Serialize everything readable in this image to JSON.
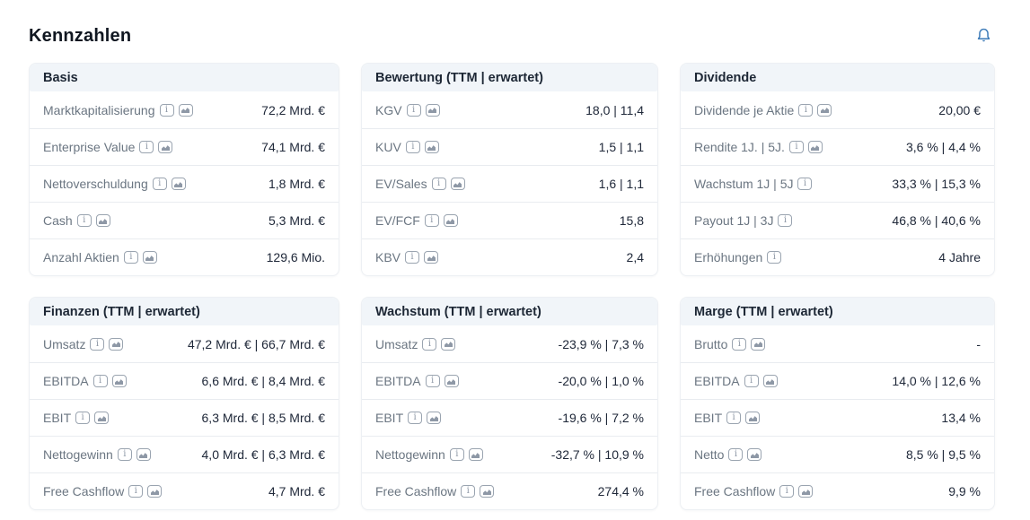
{
  "page": {
    "title": "Kennzahlen"
  },
  "header": {
    "bell_icon": "notification-bell"
  },
  "icons": {
    "info": "letter-i-in-rounded-square",
    "chart": "mini-area-chart-in-rounded-square",
    "bell": "blue-outline-bell"
  },
  "colors": {
    "accent_blue": "#3a79b7",
    "title_text": "#101721",
    "card_header_bg": "#f1f5f9",
    "card_header_text": "#1d2735",
    "label_text": "#6b7682",
    "value_text": "#20293a",
    "divider": "#e9ecf0",
    "card_border": "#edf0f4",
    "icon_gray": "#8e98a6"
  },
  "cards": [
    {
      "title": "Basis",
      "rows": [
        {
          "label": "Marktkapitalisierung",
          "icons": [
            "info",
            "chart"
          ],
          "value": "72,2 Mrd. €"
        },
        {
          "label": "Enterprise Value",
          "icons": [
            "info",
            "chart"
          ],
          "value": "74,1 Mrd. €"
        },
        {
          "label": "Nettoverschuldung",
          "icons": [
            "info",
            "chart"
          ],
          "value": "1,8 Mrd. €"
        },
        {
          "label": "Cash",
          "icons": [
            "info",
            "chart"
          ],
          "value": "5,3 Mrd. €"
        },
        {
          "label": "Anzahl Aktien",
          "icons": [
            "info",
            "chart"
          ],
          "value": "129,6 Mio."
        }
      ]
    },
    {
      "title": "Bewertung (TTM | erwartet)",
      "rows": [
        {
          "label": "KGV",
          "icons": [
            "info",
            "chart"
          ],
          "value": "18,0 | 11,4"
        },
        {
          "label": "KUV",
          "icons": [
            "info",
            "chart"
          ],
          "value": "1,5 | 1,1"
        },
        {
          "label": "EV/Sales",
          "icons": [
            "info",
            "chart"
          ],
          "value": "1,6 | 1,1"
        },
        {
          "label": "EV/FCF",
          "icons": [
            "info",
            "chart"
          ],
          "value": "15,8"
        },
        {
          "label": "KBV",
          "icons": [
            "info",
            "chart"
          ],
          "value": "2,4"
        }
      ]
    },
    {
      "title": "Dividende",
      "rows": [
        {
          "label": "Dividende je Aktie",
          "icons": [
            "info",
            "chart"
          ],
          "value": "20,00 €"
        },
        {
          "label": "Rendite 1J. | 5J.",
          "icons": [
            "info",
            "chart"
          ],
          "value": "3,6 % | 4,4 %"
        },
        {
          "label": "Wachstum 1J | 5J",
          "icons": [
            "info"
          ],
          "value": "33,3 % | 15,3 %"
        },
        {
          "label": "Payout 1J | 3J",
          "icons": [
            "info"
          ],
          "value": "46,8 % | 40,6 %"
        },
        {
          "label": "Erhöhungen",
          "icons": [
            "info"
          ],
          "value": "4 Jahre"
        }
      ]
    },
    {
      "title": "Finanzen (TTM | erwartet)",
      "rows": [
        {
          "label": "Umsatz",
          "icons": [
            "info",
            "chart"
          ],
          "value": "47,2 Mrd. € | 66,7 Mrd. €"
        },
        {
          "label": "EBITDA",
          "icons": [
            "info",
            "chart"
          ],
          "value": "6,6 Mrd. € | 8,4 Mrd. €"
        },
        {
          "label": "EBIT",
          "icons": [
            "info",
            "chart"
          ],
          "value": "6,3 Mrd. € | 8,5 Mrd. €"
        },
        {
          "label": "Nettogewinn",
          "icons": [
            "info",
            "chart"
          ],
          "value": "4,0 Mrd. € | 6,3 Mrd. €"
        },
        {
          "label": "Free Cashflow",
          "icons": [
            "info",
            "chart"
          ],
          "value": "4,7 Mrd. €"
        }
      ]
    },
    {
      "title": "Wachstum (TTM | erwartet)",
      "rows": [
        {
          "label": "Umsatz",
          "icons": [
            "info",
            "chart"
          ],
          "value": "-23,9 % | 7,3 %"
        },
        {
          "label": "EBITDA",
          "icons": [
            "info",
            "chart"
          ],
          "value": "-20,0 % | 1,0 %"
        },
        {
          "label": "EBIT",
          "icons": [
            "info",
            "chart"
          ],
          "value": "-19,6 % | 7,2 %"
        },
        {
          "label": "Nettogewinn",
          "icons": [
            "info",
            "chart"
          ],
          "value": "-32,7 % | 10,9 %"
        },
        {
          "label": "Free Cashflow",
          "icons": [
            "info",
            "chart"
          ],
          "value": "274,4 %"
        }
      ]
    },
    {
      "title": "Marge (TTM | erwartet)",
      "rows": [
        {
          "label": "Brutto",
          "icons": [
            "info",
            "chart"
          ],
          "value": "-"
        },
        {
          "label": "EBITDA",
          "icons": [
            "info",
            "chart"
          ],
          "value": "14,0 % | 12,6 %"
        },
        {
          "label": "EBIT",
          "icons": [
            "info",
            "chart"
          ],
          "value": "13,4 %"
        },
        {
          "label": "Netto",
          "icons": [
            "info",
            "chart"
          ],
          "value": "8,5 % | 9,5 %"
        },
        {
          "label": "Free Cashflow",
          "icons": [
            "info",
            "chart"
          ],
          "value": "9,9 %"
        }
      ]
    }
  ]
}
